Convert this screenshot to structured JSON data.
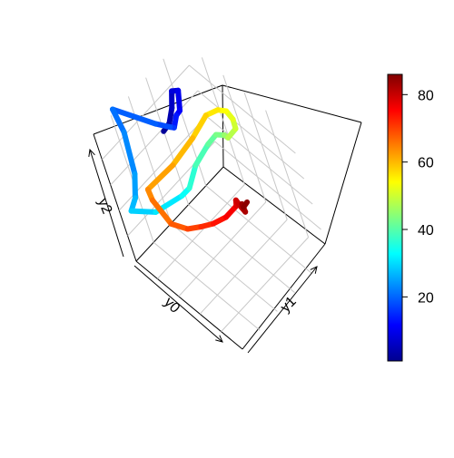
{
  "chart_data": {
    "type": "line",
    "projection": "3d-perspective",
    "axis_labels": {
      "x": "y0",
      "y": "y1",
      "z": "y2"
    },
    "box": true,
    "grid": true,
    "color_variable": "index",
    "colorbar": {
      "range": [
        1,
        86
      ],
      "ticks": [
        20,
        40,
        60,
        80
      ],
      "palette": [
        "#00008F",
        "#0000FF",
        "#0080FF",
        "#00FFFF",
        "#80FF80",
        "#FFFF00",
        "#FF8000",
        "#FF0000",
        "#800000"
      ]
    },
    "series": [
      {
        "points": [
          {
            "index": 1,
            "value": [
              -0.05,
              0.63,
              0.52
            ]
          },
          {
            "index": 3,
            "value": [
              0.06,
              0.63,
              0.66
            ]
          },
          {
            "index": 5,
            "value": [
              0.16,
              0.63,
              0.85
            ]
          },
          {
            "index": 7,
            "value": [
              0.17,
              0.67,
              0.96
            ]
          },
          {
            "index": 9,
            "value": [
              0.21,
              0.7,
              0.97
            ]
          },
          {
            "index": 11,
            "value": [
              0.19,
              0.67,
              0.82
            ]
          },
          {
            "index": 12,
            "value": [
              0.17,
              0.64,
              0.79
            ]
          },
          {
            "index": 15,
            "value": [
              0.15,
              0.6,
              0.71
            ]
          },
          {
            "index": 17,
            "value": [
              0.1,
              0.6,
              0.68
            ]
          },
          {
            "index": 19,
            "value": [
              0.05,
              0.52,
              0.73
            ]
          },
          {
            "index": 20,
            "value": [
              -0.03,
              0.25,
              0.99
            ]
          },
          {
            "index": 22,
            "value": [
              0.05,
              0.23,
              0.88
            ]
          },
          {
            "index": 24,
            "value": [
              0.1,
              0.17,
              0.63
            ]
          },
          {
            "index": 26,
            "value": [
              0.11,
              0.1,
              0.5
            ]
          },
          {
            "index": 28,
            "value": [
              0.11,
              0.03,
              0.45
            ]
          },
          {
            "index": 30,
            "value": [
              0.22,
              0.16,
              0.42
            ]
          },
          {
            "index": 32,
            "value": [
              0.34,
              0.35,
              0.49
            ]
          },
          {
            "index": 35,
            "value": [
              0.41,
              0.39,
              0.57
            ]
          },
          {
            "index": 38,
            "value": [
              0.45,
              0.48,
              0.71
            ]
          },
          {
            "index": 40,
            "value": [
              0.49,
              0.62,
              0.8
            ]
          },
          {
            "index": 42,
            "value": [
              0.51,
              0.7,
              0.83
            ]
          },
          {
            "index": 44,
            "value": [
              0.54,
              0.75,
              0.81
            ]
          },
          {
            "index": 47,
            "value": [
              0.53,
              0.78,
              0.76
            ]
          },
          {
            "index": 49,
            "value": [
              0.56,
              0.85,
              0.8
            ]
          },
          {
            "index": 51,
            "value": [
              0.55,
              0.86,
              0.86
            ]
          },
          {
            "index": 53,
            "value": [
              0.5,
              0.86,
              0.89
            ]
          },
          {
            "index": 55,
            "value": [
              0.44,
              0.83,
              0.88
            ]
          },
          {
            "index": 57,
            "value": [
              0.37,
              0.76,
              0.84
            ]
          },
          {
            "index": 59,
            "value": [
              0.3,
              0.63,
              0.71
            ]
          },
          {
            "index": 61,
            "value": [
              0.2,
              0.45,
              0.56
            ]
          },
          {
            "index": 63,
            "value": [
              0.11,
              0.23,
              0.47
            ]
          },
          {
            "index": 65,
            "value": [
              0.17,
              0.2,
              0.45
            ]
          },
          {
            "index": 67,
            "value": [
              0.31,
              0.2,
              0.36
            ]
          },
          {
            "index": 69,
            "value": [
              0.44,
              0.24,
              0.38
            ]
          },
          {
            "index": 71,
            "value": [
              0.5,
              0.32,
              0.38
            ]
          },
          {
            "index": 73,
            "value": [
              0.55,
              0.4,
              0.38
            ]
          },
          {
            "index": 75,
            "value": [
              0.62,
              0.48,
              0.42
            ]
          },
          {
            "index": 77,
            "value": [
              0.68,
              0.56,
              0.49
            ]
          },
          {
            "index": 79,
            "value": [
              0.7,
              0.56,
              0.55
            ]
          },
          {
            "index": 80,
            "value": [
              0.74,
              0.56,
              0.52
            ]
          },
          {
            "index": 82,
            "value": [
              0.74,
              0.58,
              0.47
            ]
          },
          {
            "index": 83,
            "value": [
              0.7,
              0.6,
              0.49
            ]
          },
          {
            "index": 84,
            "value": [
              0.69,
              0.61,
              0.45
            ]
          },
          {
            "index": 86,
            "value": [
              0.65,
              0.68,
              0.41
            ]
          }
        ]
      }
    ]
  }
}
